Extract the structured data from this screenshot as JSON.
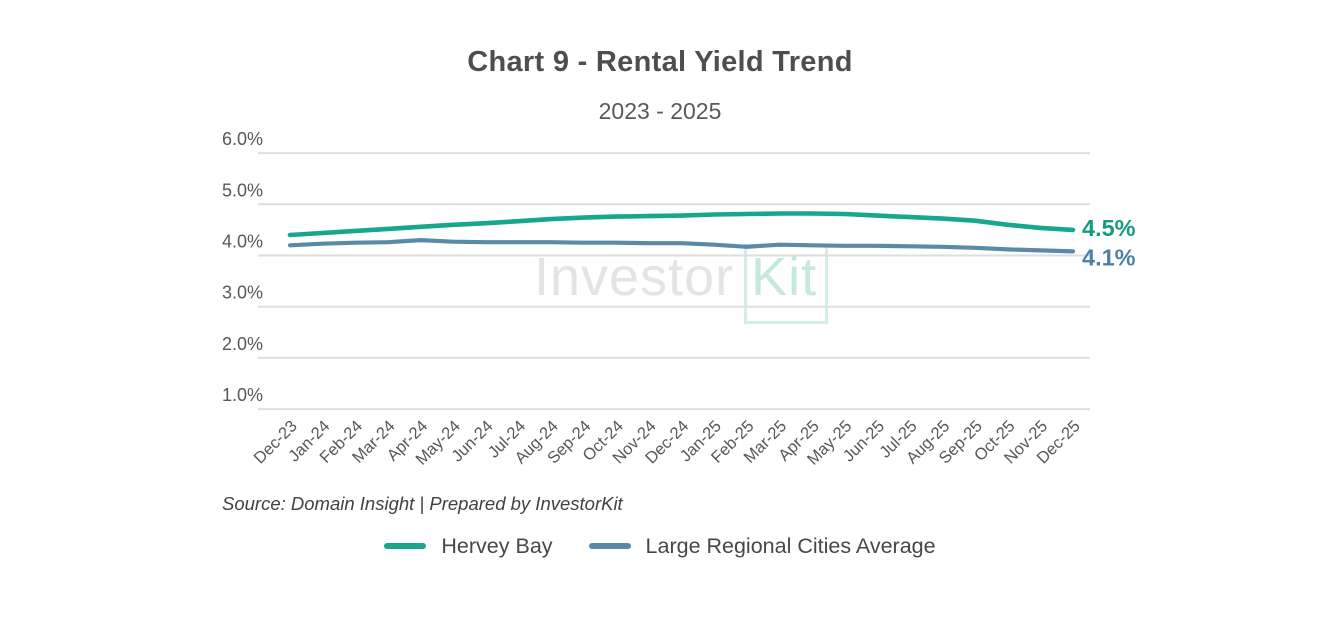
{
  "header": {
    "title": "Chart 9 - Rental Yield Trend",
    "subtitle": "2023 - 2025"
  },
  "source_note": "Source: Domain Insight | Prepared by InvestorKit",
  "watermark": {
    "part1": "Investor",
    "part2": "Kit"
  },
  "colors": {
    "hervey_bay_line": "#17a78b",
    "regional_avg_line": "#5b8aa9",
    "hervey_bay_label": "#169a7f",
    "regional_avg_label": "#4d80a6",
    "gridline": "#dedede",
    "axis_text": "#57585c"
  },
  "legend": {
    "items": [
      {
        "label": "Hervey Bay",
        "color": "#17a78b"
      },
      {
        "label": "Large Regional Cities Average",
        "color": "#5b8aa9"
      }
    ]
  },
  "chart_data": {
    "type": "line",
    "title": "Chart 9 - Rental Yield Trend",
    "subtitle": "2023 - 2025",
    "x": [
      "Dec-23",
      "Jan-24",
      "Feb-24",
      "Mar-24",
      "Apr-24",
      "May-24",
      "Jun-24",
      "Jul-24",
      "Aug-24",
      "Sep-24",
      "Oct-24",
      "Nov-24",
      "Dec-24",
      "Jan-25",
      "Feb-25",
      "Mar-25",
      "Apr-25",
      "May-25",
      "Jun-25",
      "Jul-25",
      "Aug-25",
      "Sep-25",
      "Oct-25",
      "Nov-25",
      "Dec-25"
    ],
    "series": [
      {
        "name": "Hervey Bay",
        "color": "#17a78b",
        "end_label": "4.5%",
        "end_label_color": "#169a7f",
        "values": [
          4.4,
          4.44,
          4.48,
          4.52,
          4.56,
          4.6,
          4.63,
          4.67,
          4.71,
          4.74,
          4.76,
          4.77,
          4.78,
          4.8,
          4.81,
          4.82,
          4.82,
          4.81,
          4.78,
          4.75,
          4.72,
          4.68,
          4.6,
          4.54,
          4.5
        ]
      },
      {
        "name": "Large Regional Cities Average",
        "color": "#5b8aa9",
        "end_label": "4.1%",
        "end_label_color": "#4d80a6",
        "values": [
          4.2,
          4.23,
          4.25,
          4.26,
          4.3,
          4.27,
          4.26,
          4.26,
          4.26,
          4.25,
          4.25,
          4.24,
          4.24,
          4.21,
          4.17,
          4.21,
          4.2,
          4.19,
          4.19,
          4.18,
          4.17,
          4.15,
          4.12,
          4.1,
          4.08
        ]
      }
    ],
    "y_gridlines": [
      6,
      5,
      4,
      3,
      2,
      1
    ],
    "y_ticks": [
      "6.0%",
      "5.0%",
      "4.0%",
      "3.0%",
      "2.0%",
      "1.0%"
    ],
    "ylim": [
      1.0,
      6.0
    ],
    "ylabel": "",
    "xlabel": "",
    "grid": true,
    "legend_position": "bottom"
  }
}
